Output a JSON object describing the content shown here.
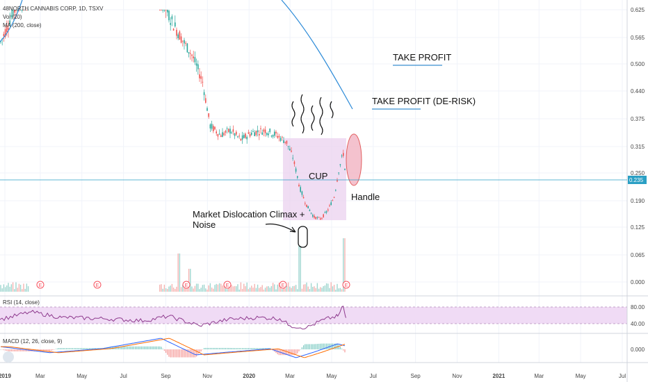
{
  "header": {
    "symbol_line": "48NORTH CANNABIS CORP, 1D, TSXV",
    "volume_label": "Vol (20)",
    "ma_label": "MA (200, close)"
  },
  "annotations": {
    "take_profit": "TAKE PROFIT",
    "take_profit_derisk": "TAKE PROFIT (DE-RISK)",
    "cup": "CUP",
    "handle": "Handle",
    "climax_line1": "Market Dislocation Climax +",
    "climax_line2": "Noise"
  },
  "earnings_marker": "E",
  "current_price_label": "0.235",
  "chart_data": [
    {
      "type": "line",
      "panel": "price",
      "yscale": "log",
      "yticks": [
        "0.625",
        "0.565",
        "0.500",
        "0.440",
        "0.375",
        "0.315",
        "0.250",
        "0.190",
        "0.125",
        "0.065",
        "0.000"
      ],
      "xticks": [
        "2019",
        "Mar",
        "May",
        "Jul",
        "Sep",
        "Nov",
        "2020",
        "Mar",
        "May",
        "Jul",
        "Sep",
        "Nov",
        "2021",
        "Mar",
        "May",
        "Jul"
      ],
      "current_price": 0.235,
      "series": [
        {
          "name": "48NORTH CANNABIS CORP",
          "x": [
            "2019-01-01",
            "2019-01-20",
            "2019-02-10",
            "2019-08-25",
            "2019-09-10",
            "2019-09-25",
            "2019-10-10",
            "2019-10-25",
            "2019-11-05",
            "2019-11-20",
            "2019-12-05",
            "2019-12-20",
            "2020-01-05",
            "2020-01-25",
            "2020-02-10",
            "2020-02-25",
            "2020-03-05",
            "2020-03-15",
            "2020-03-25",
            "2020-04-05",
            "2020-04-15",
            "2020-04-25",
            "2020-05-05",
            "2020-05-12",
            "2020-05-18",
            "2020-05-22"
          ],
          "values": [
            0.55,
            0.62,
            0.66,
            0.65,
            0.6,
            0.56,
            0.52,
            0.46,
            0.36,
            0.34,
            0.35,
            0.33,
            0.345,
            0.35,
            0.34,
            0.325,
            0.29,
            0.22,
            0.18,
            0.15,
            0.145,
            0.165,
            0.2,
            0.26,
            0.3,
            0.235
          ]
        }
      ]
    },
    {
      "type": "bar",
      "panel": "volume",
      "series": [
        {
          "name": "Vol (20)",
          "x": [
            "2019-03-05",
            "2019-05-10",
            "2019-07-10",
            "2019-09-20",
            "2019-10-05",
            "2020-03-15",
            "2020-05-20"
          ],
          "values": [
            0.17,
            0.1,
            0.08,
            0.1,
            0.06,
            0.12,
            0.14
          ]
        }
      ]
    },
    {
      "type": "line",
      "panel": "rsi",
      "title": "RSI (14, close)",
      "yticks": [
        "80.00",
        "40.00"
      ],
      "series": [
        {
          "name": "RSI (14, close)",
          "x": [
            "2019-01-01",
            "2019-02-15",
            "2019-04-01",
            "2019-06-01",
            "2019-08-01",
            "2019-09-05",
            "2019-10-20",
            "2019-12-01",
            "2020-01-15",
            "2020-02-15",
            "2020-03-01",
            "2020-03-25",
            "2020-04-20",
            "2020-05-10",
            "2020-05-18",
            "2020-05-22"
          ],
          "values": [
            50,
            68,
            55,
            52,
            47,
            58,
            35,
            50,
            55,
            52,
            35,
            30,
            50,
            58,
            82,
            54
          ]
        }
      ]
    },
    {
      "type": "line",
      "panel": "macd",
      "title": "MACD (12, 26, close, 9)",
      "yticks": [
        "0.000"
      ],
      "series": [
        {
          "name": "MACD",
          "x": [
            "2019-01-01",
            "2019-03-15",
            "2019-06-01",
            "2019-08-25",
            "2019-10-15",
            "2019-12-01",
            "2020-02-01",
            "2020-03-10",
            "2020-04-05",
            "2020-05-10",
            "2020-05-22"
          ],
          "values": [
            0.01,
            -0.012,
            0.003,
            0.04,
            -0.02,
            -0.01,
            0.002,
            -0.03,
            -0.01,
            0.02,
            0.012
          ]
        }
      ]
    }
  ]
}
